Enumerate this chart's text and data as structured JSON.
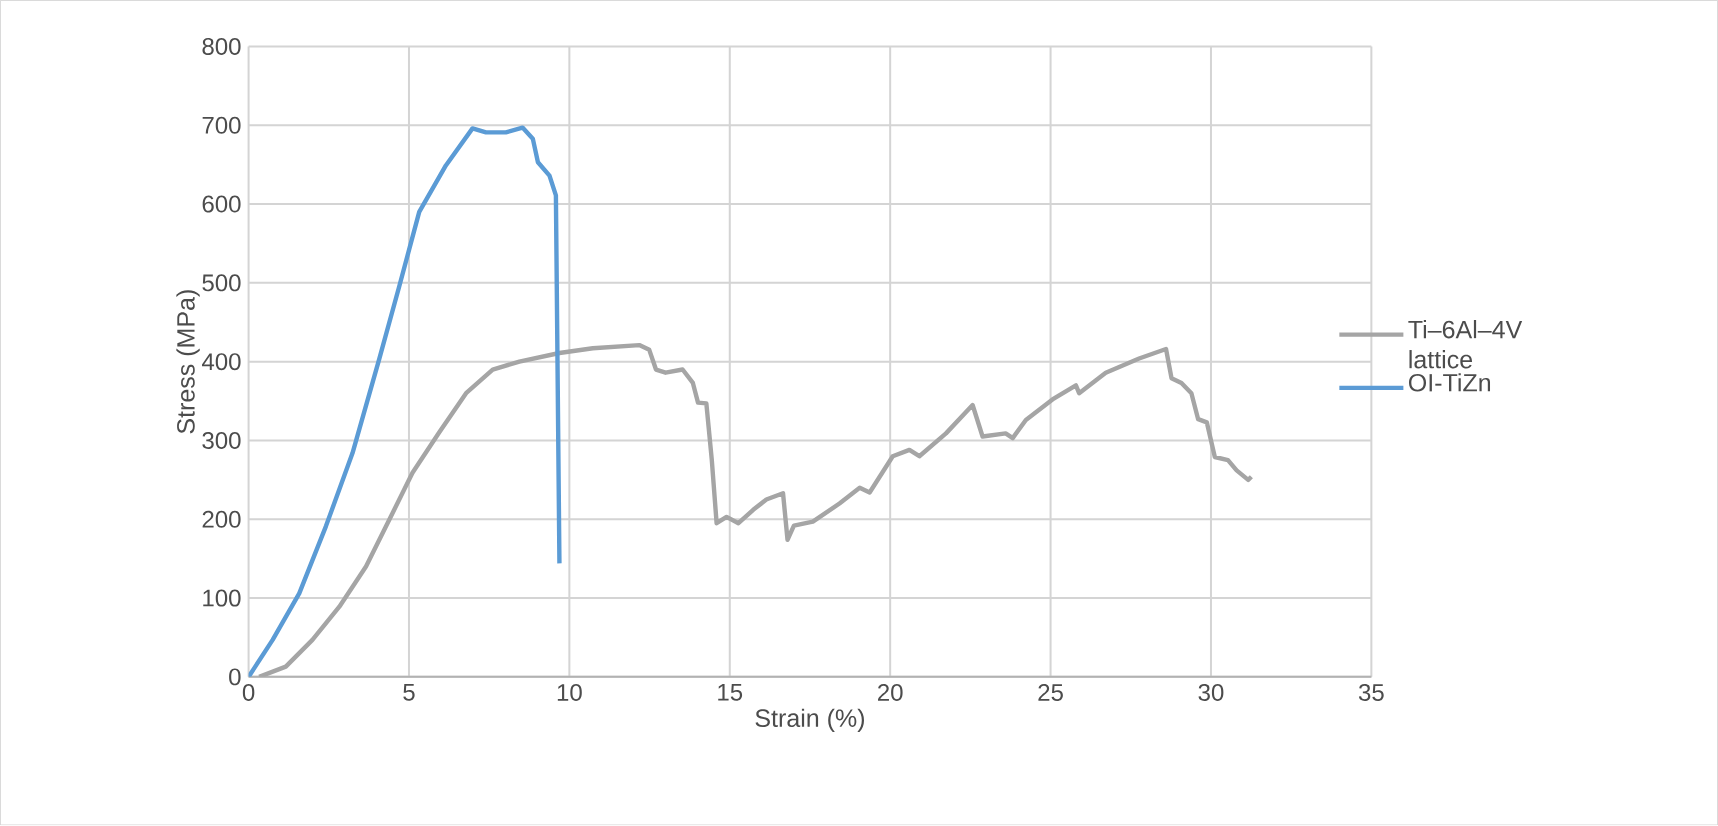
{
  "chart_data": {
    "type": "line",
    "xlabel": "Strain (%)",
    "ylabel": "Stress (MPa)",
    "xlim": [
      0,
      35
    ],
    "xticks": [
      0,
      5,
      10,
      15,
      20,
      25,
      30,
      35
    ],
    "ylim": [
      0,
      800
    ],
    "yticks": [
      0,
      100,
      200,
      300,
      400,
      500,
      600,
      700,
      800
    ],
    "grid": true,
    "legend": "right",
    "marker": "none",
    "line_style": "solid",
    "series": [
      {
        "name": "Ti–6Al–4V lattice",
        "color": "#a5a5a5",
        "x": [
          0.33,
          1.16,
          1.99,
          2.83,
          3.66,
          4.49,
          5.11,
          5.94,
          6.78,
          7.61,
          8.44,
          9.69,
          10.73,
          12.18,
          12.49,
          12.7,
          13.0,
          13.53,
          13.85,
          14.01,
          14.27,
          14.44,
          14.59,
          14.9,
          15.27,
          15.73,
          16.14,
          16.66,
          16.8,
          17.0,
          17.59,
          18.42,
          19.05,
          19.36,
          20.08,
          20.6,
          20.91,
          21.74,
          22.57,
          22.88,
          23.6,
          23.82,
          24.23,
          25.06,
          25.79,
          25.89,
          26.72,
          27.76,
          28.6,
          28.77,
          29.08,
          29.39,
          29.6,
          29.87,
          30.12,
          30.53,
          30.8,
          31.16,
          31.26
        ],
        "values": [
          0,
          13,
          47,
          89,
          140,
          208,
          259,
          310,
          360,
          390,
          400,
          411,
          417,
          421,
          415,
          390,
          386,
          390,
          373,
          348,
          347,
          275,
          195,
          203,
          195,
          212,
          225,
          233,
          174,
          192,
          197,
          220,
          240,
          234,
          280,
          288,
          280,
          309,
          345,
          305,
          309,
          303,
          326,
          352,
          370,
          360,
          386,
          404,
          416,
          379,
          373,
          360,
          327,
          323,
          279,
          275,
          262,
          250,
          254
        ]
      },
      {
        "name": "OI-TiZn",
        "color": "#5b9bd5",
        "x": [
          0,
          0.75,
          1.58,
          2.41,
          3.24,
          4.07,
          4.7,
          5.32,
          6.15,
          6.98,
          7.4,
          8.02,
          8.54,
          8.86,
          9.02,
          9.38,
          9.58,
          9.69
        ],
        "values": [
          0,
          47,
          106,
          191,
          284,
          403,
          496,
          590,
          649,
          696,
          691,
          691,
          697,
          683,
          653,
          636,
          611,
          144
        ]
      }
    ]
  }
}
